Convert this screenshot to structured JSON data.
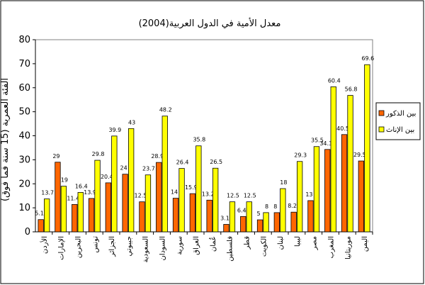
{
  "chart_data": {
    "type": "bar",
    "title": "معدل الأمية في الدول العربية(2004)",
    "ylabel": "الفئة العمرية (15 سنة فما فوق)",
    "xlabel": "",
    "ylim": [
      0,
      80
    ],
    "yticks": [
      0,
      10,
      20,
      30,
      40,
      50,
      60,
      70,
      80
    ],
    "grid": false,
    "legend_position": "right",
    "categories": [
      "الأردن",
      "الإمارات",
      "البحرين",
      "تونس",
      "الجزائر",
      "جيبوتي",
      "السعودية",
      "السودان",
      "سورية",
      "العراق",
      "عُمان",
      "فلسطين",
      "قطر",
      "الكويت",
      "لبنان",
      "ليبيا",
      "مصر",
      "المغرب",
      "موريتانيا",
      "اليمن"
    ],
    "series": [
      {
        "name": "بين الذكور",
        "color": "#ff6600",
        "values": [
          5.1,
          29,
          11.4,
          13.9,
          20.4,
          24,
          12.5,
          28.9,
          14,
          15.9,
          13.2,
          3.1,
          6.4,
          5,
          8,
          8.2,
          13,
          34.3,
          40.5,
          29.5
        ]
      },
      {
        "name": "بين الإناث",
        "color": "#ffff00",
        "values": [
          13.7,
          19,
          16.4,
          29.8,
          39.9,
          43,
          23.7,
          48.2,
          26.4,
          35.8,
          26.5,
          12.5,
          12.5,
          8,
          18,
          29.3,
          35.5,
          60.4,
          56.8,
          69.6
        ]
      }
    ]
  }
}
